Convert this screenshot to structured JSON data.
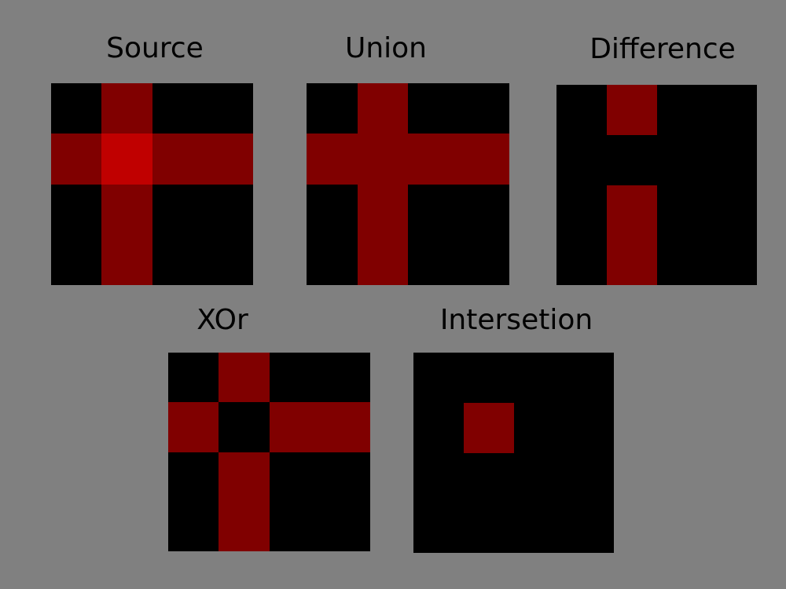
{
  "colors": {
    "background": "#808080",
    "panel": "#000000",
    "region": "#800000",
    "overlap": "#c00000"
  },
  "panels": {
    "source": {
      "title": "Source",
      "grid": [
        "0100",
        "1211",
        "0100",
        "0100"
      ]
    },
    "union": {
      "title": "Union",
      "grid": [
        "0100",
        "1111",
        "0100",
        "0100"
      ]
    },
    "difference": {
      "title": "Difference",
      "grid": [
        "0100",
        "0000",
        "0100",
        "0100"
      ]
    },
    "xor": {
      "title": "XOr",
      "grid": [
        "0100",
        "1011",
        "0100",
        "0100"
      ]
    },
    "intersection": {
      "title": "Intersetion",
      "grid": [
        "0000",
        "0100",
        "0000",
        "0000"
      ]
    }
  }
}
